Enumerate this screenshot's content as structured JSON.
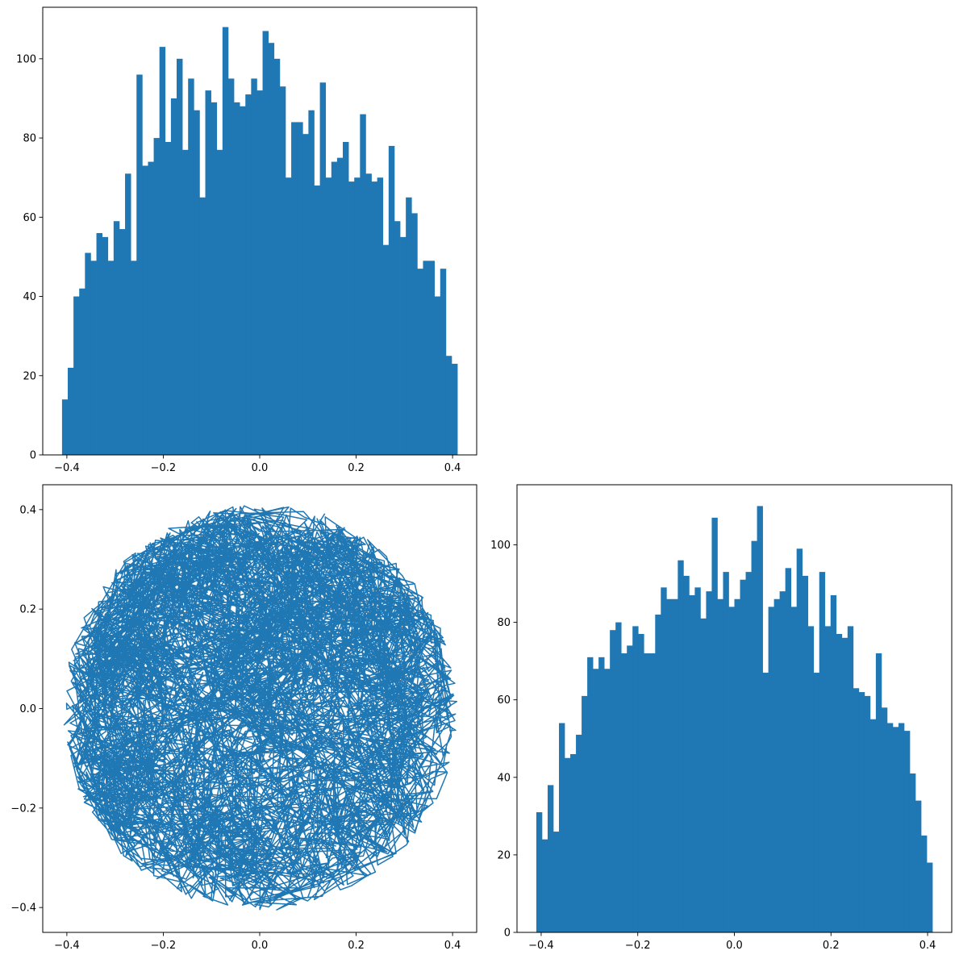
{
  "chart_data": [
    {
      "panel": "top-left",
      "type": "bar",
      "title": "",
      "xlabel": "",
      "ylabel": "",
      "xlim": [
        -0.45,
        0.45
      ],
      "ylim": [
        0,
        113
      ],
      "xticks": [
        -0.4,
        -0.2,
        0.0,
        0.2,
        0.4
      ],
      "xtick_labels": [
        "−0.4",
        "−0.2",
        "0.0",
        "0.2",
        "0.4"
      ],
      "yticks": [
        0,
        20,
        40,
        60,
        80,
        100
      ],
      "ytick_labels": [
        "0",
        "20",
        "40",
        "60",
        "80",
        "100"
      ],
      "bin_range": [
        -0.41,
        0.41
      ],
      "values": [
        14,
        22,
        40,
        42,
        51,
        49,
        56,
        55,
        49,
        59,
        57,
        71,
        49,
        96,
        73,
        74,
        80,
        103,
        79,
        90,
        100,
        77,
        95,
        87,
        65,
        92,
        89,
        77,
        108,
        95,
        89,
        88,
        91,
        95,
        92,
        107,
        104,
        100,
        93,
        70,
        84,
        84,
        81,
        87,
        68,
        94,
        70,
        74,
        75,
        79,
        69,
        70,
        86,
        71,
        69,
        70,
        53,
        78,
        59,
        55,
        65,
        61,
        47,
        49,
        49,
        40,
        47,
        25,
        23
      ]
    },
    {
      "panel": "bottom-left",
      "type": "line",
      "title": "",
      "xlabel": "",
      "ylabel": "",
      "xlim": [
        -0.45,
        0.45
      ],
      "ylim": [
        -0.45,
        0.45
      ],
      "xticks": [
        -0.4,
        -0.2,
        0.0,
        0.2,
        0.4
      ],
      "xtick_labels": [
        "−0.4",
        "−0.2",
        "0.0",
        "0.2",
        "0.4"
      ],
      "yticks": [
        -0.4,
        -0.2,
        0.0,
        0.2,
        0.4
      ],
      "ytick_labels": [
        "−0.4",
        "−0.2",
        "0.0",
        "0.2",
        "0.4"
      ],
      "radius": 0.41,
      "n_points": 5000,
      "endpoint": [
        0.135,
        0.392
      ]
    },
    {
      "panel": "bottom-right",
      "type": "bar",
      "title": "",
      "xlabel": "",
      "ylabel": "",
      "xlim": [
        -0.45,
        0.45
      ],
      "ylim": [
        0,
        115.5
      ],
      "xticks": [
        -0.4,
        -0.2,
        0.0,
        0.2,
        0.4
      ],
      "xtick_labels": [
        "−0.4",
        "−0.2",
        "0.0",
        "0.2",
        "0.4"
      ],
      "yticks": [
        0,
        20,
        40,
        60,
        80,
        100
      ],
      "ytick_labels": [
        "0",
        "20",
        "40",
        "60",
        "80",
        "100"
      ],
      "bin_range": [
        -0.41,
        0.41
      ],
      "values": [
        31,
        24,
        38,
        26,
        54,
        45,
        46,
        51,
        61,
        71,
        68,
        71,
        68,
        78,
        80,
        72,
        74,
        79,
        77,
        72,
        72,
        82,
        89,
        86,
        86,
        96,
        92,
        87,
        89,
        81,
        88,
        107,
        86,
        93,
        84,
        86,
        91,
        93,
        101,
        110,
        67,
        84,
        86,
        88,
        94,
        84,
        99,
        92,
        79,
        67,
        93,
        79,
        87,
        77,
        76,
        79,
        63,
        62,
        61,
        55,
        72,
        58,
        54,
        53,
        54,
        52,
        41,
        34,
        25,
        18
      ]
    }
  ],
  "style": {
    "bar_color": "#1f77b4",
    "line_color": "#1f77b4",
    "axes_color": "#000000",
    "background": "#ffffff"
  }
}
